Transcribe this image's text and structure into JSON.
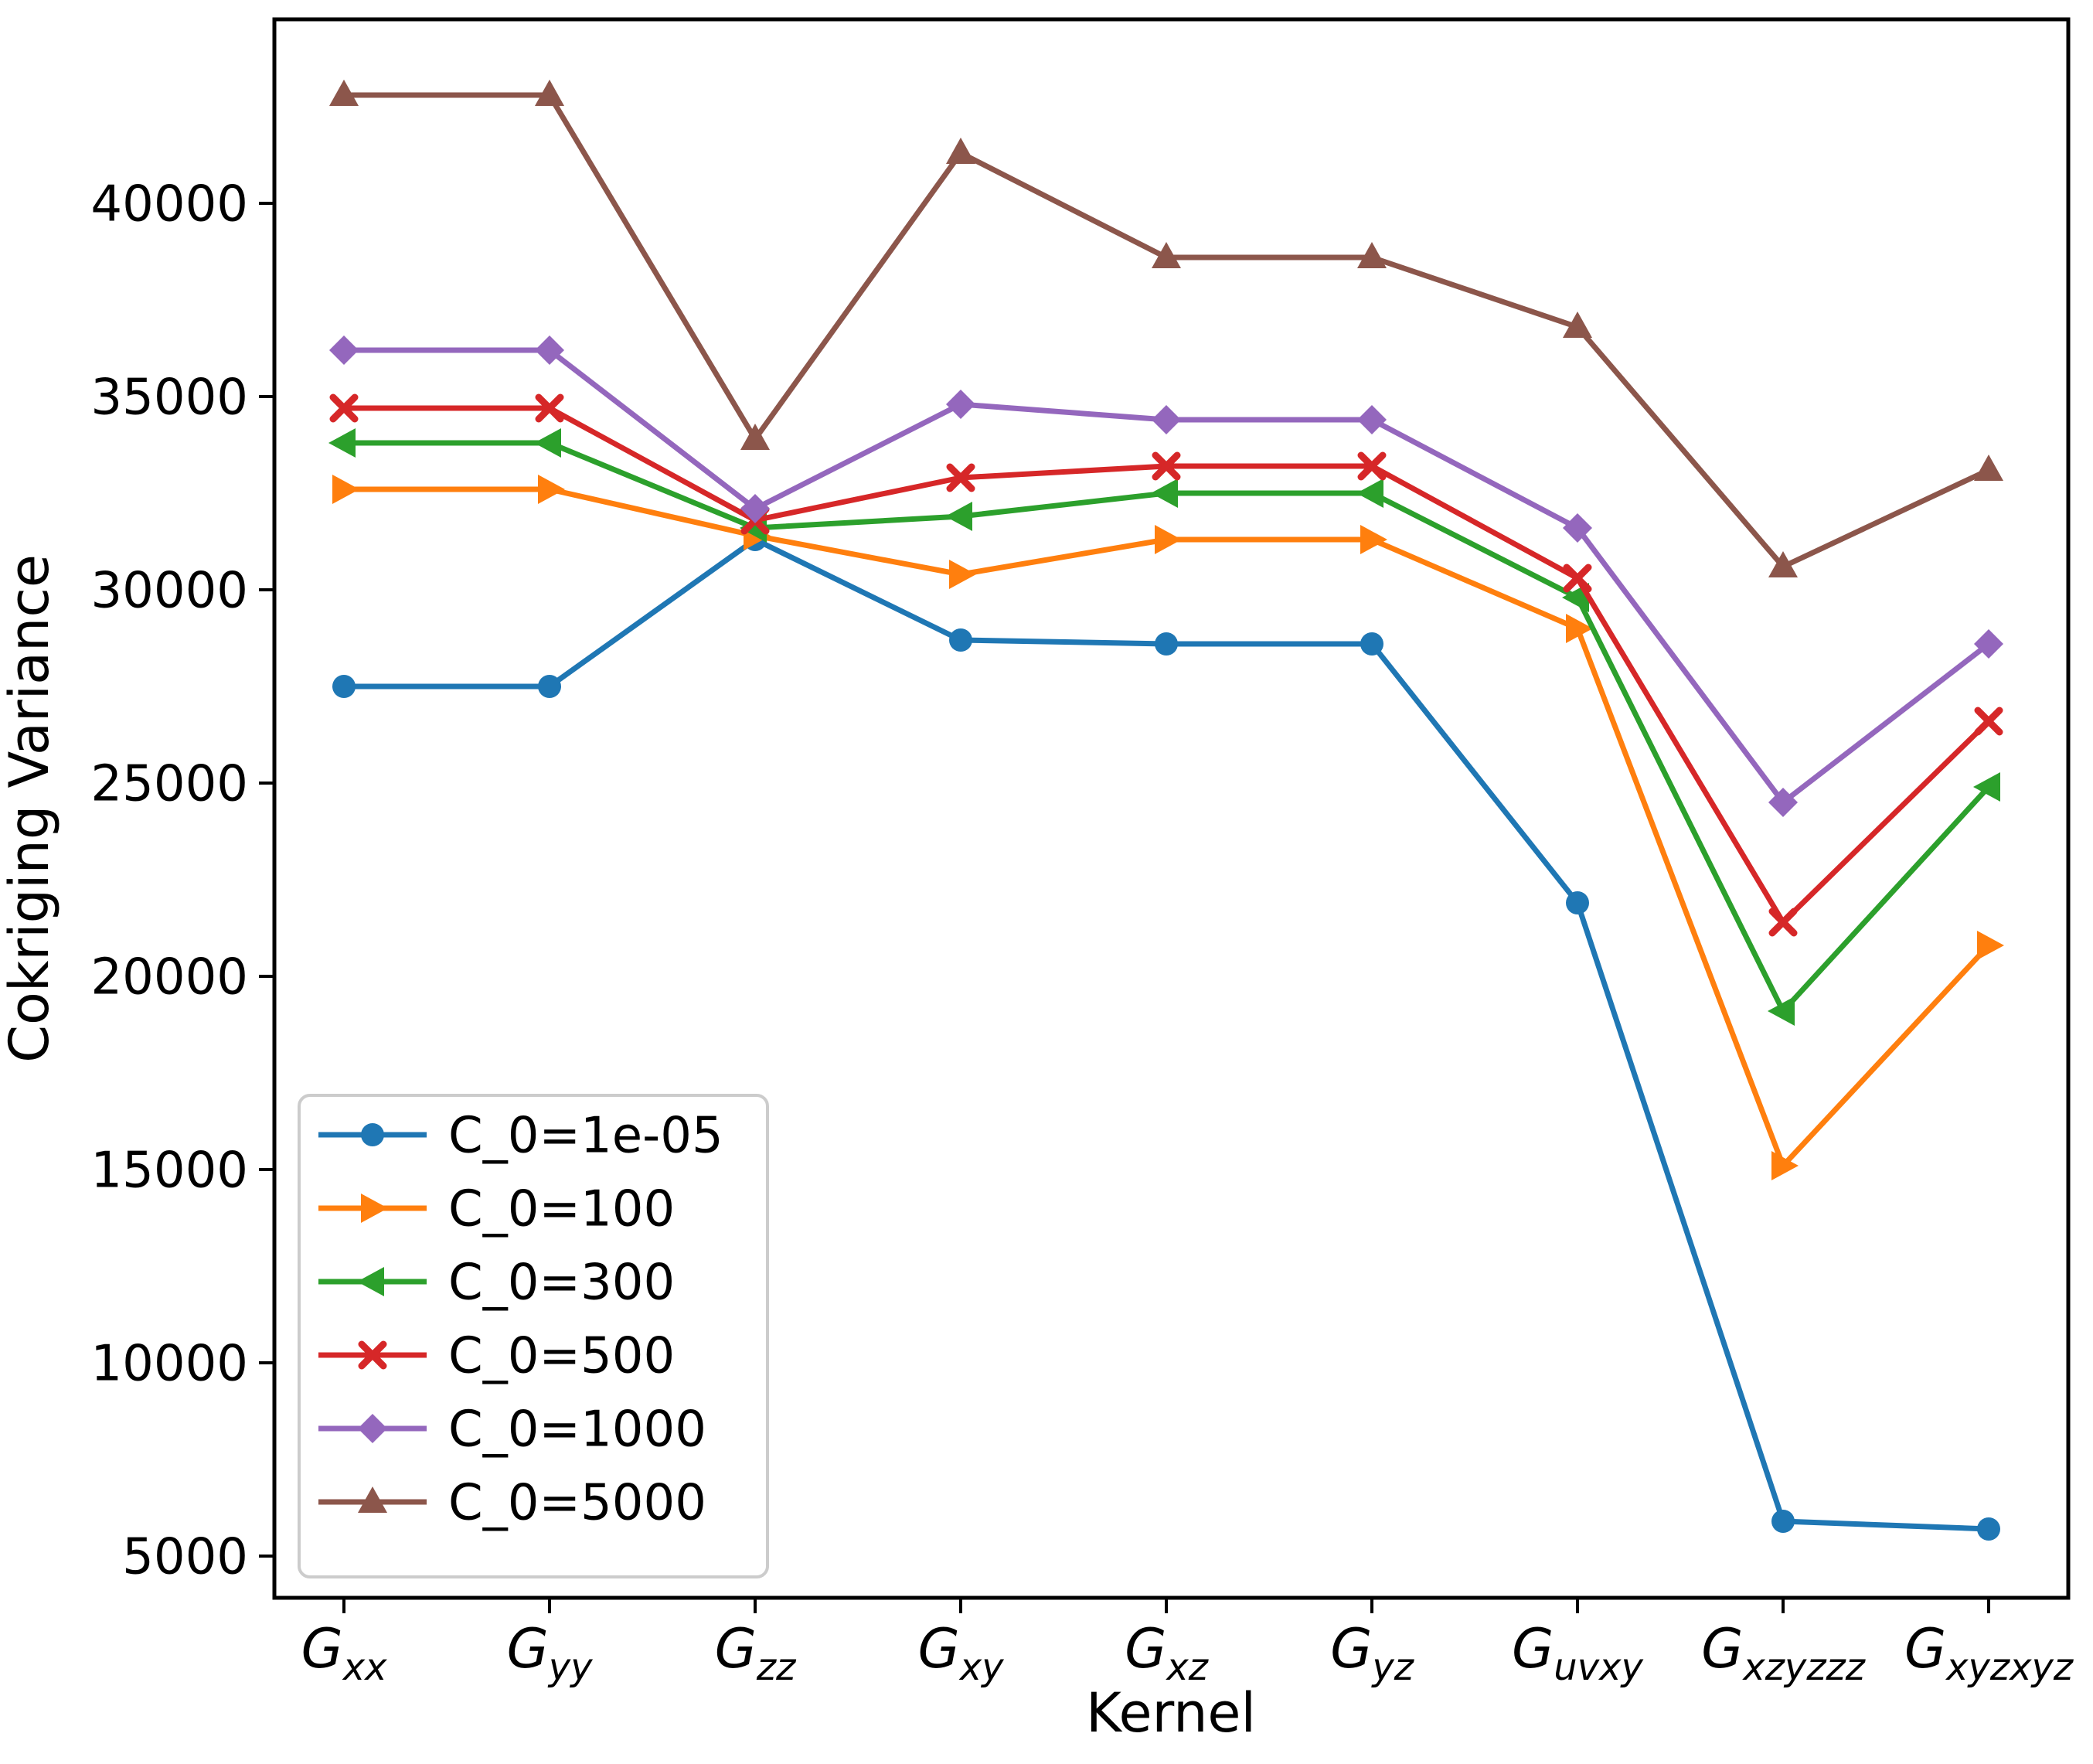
{
  "figure": {
    "background": "#ffffff",
    "spine_color": "#000000",
    "legend_border_color": "#cccccc"
  },
  "chart_data": {
    "type": "line",
    "title": "",
    "xlabel": "Kernel",
    "ylabel": "Cokriging Variance",
    "categories": [
      "G_xx",
      "G_yy",
      "G_zz",
      "G_xy",
      "G_xz",
      "G_yz",
      "G_uvxy",
      "G_xzyzzz",
      "G_xyzxyz"
    ],
    "categories_math": [
      {
        "base": "G",
        "sub": "xx"
      },
      {
        "base": "G",
        "sub": "yy"
      },
      {
        "base": "G",
        "sub": "zz"
      },
      {
        "base": "G",
        "sub": "xy"
      },
      {
        "base": "G",
        "sub": "xz"
      },
      {
        "base": "G",
        "sub": "yz"
      },
      {
        "base": "G",
        "sub": "uvxy"
      },
      {
        "base": "G",
        "sub": "xzyzzz"
      },
      {
        "base": "G",
        "sub": "xyzxyz"
      }
    ],
    "yticks": [
      5000,
      10000,
      15000,
      20000,
      25000,
      30000,
      35000,
      40000
    ],
    "ylim": [
      3920,
      44760
    ],
    "grid": false,
    "legend_position": "lower left",
    "series": [
      {
        "name": "C_0=1e-05",
        "color": "#1f77b4",
        "marker": "circle",
        "values": [
          27500,
          27500,
          31300,
          28700,
          28600,
          28600,
          21900,
          5900,
          5700
        ]
      },
      {
        "name": "C_0=100",
        "color": "#ff7f0e",
        "marker": "triangle-right",
        "values": [
          32600,
          32600,
          31400,
          30400,
          31300,
          31300,
          29000,
          15100,
          20800
        ]
      },
      {
        "name": "C_0=300",
        "color": "#2ca02c",
        "marker": "triangle-left",
        "values": [
          33800,
          33800,
          31600,
          31900,
          32500,
          32500,
          29800,
          19100,
          24900
        ]
      },
      {
        "name": "C_0=500",
        "color": "#d62728",
        "marker": "x",
        "values": [
          34700,
          34700,
          31800,
          32900,
          33200,
          33200,
          30300,
          21400,
          26600
        ]
      },
      {
        "name": "C_0=1000",
        "color": "#9467bd",
        "marker": "diamond",
        "values": [
          36200,
          36200,
          32100,
          34800,
          34400,
          34400,
          31600,
          24500,
          28600
        ]
      },
      {
        "name": "C_0=5000",
        "color": "#8c564b",
        "marker": "triangle-up",
        "values": [
          42800,
          42800,
          33900,
          41300,
          38600,
          38600,
          36800,
          30600,
          33100
        ]
      }
    ]
  }
}
